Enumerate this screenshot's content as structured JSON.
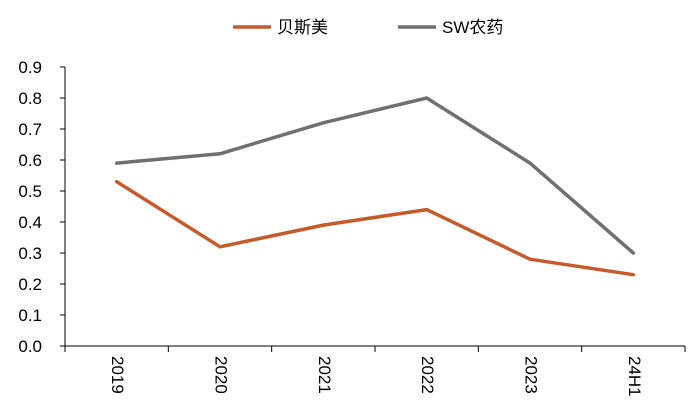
{
  "chart_data": {
    "type": "line",
    "categories": [
      "2019",
      "2020",
      "2021",
      "2022",
      "2023",
      "24H1"
    ],
    "series": [
      {
        "name": "贝斯美",
        "color": "#C55A2B",
        "values": [
          0.53,
          0.32,
          0.39,
          0.44,
          0.28,
          0.23
        ]
      },
      {
        "name": "SW农药",
        "color": "#707070",
        "values": [
          0.59,
          0.62,
          0.72,
          0.8,
          0.59,
          0.3
        ]
      }
    ],
    "ylim": [
      0,
      0.9
    ],
    "yticks": [
      "0.0",
      "0.1",
      "0.2",
      "0.3",
      "0.4",
      "0.5",
      "0.6",
      "0.7",
      "0.8",
      "0.9"
    ],
    "grid": false,
    "legend": "top-center"
  }
}
